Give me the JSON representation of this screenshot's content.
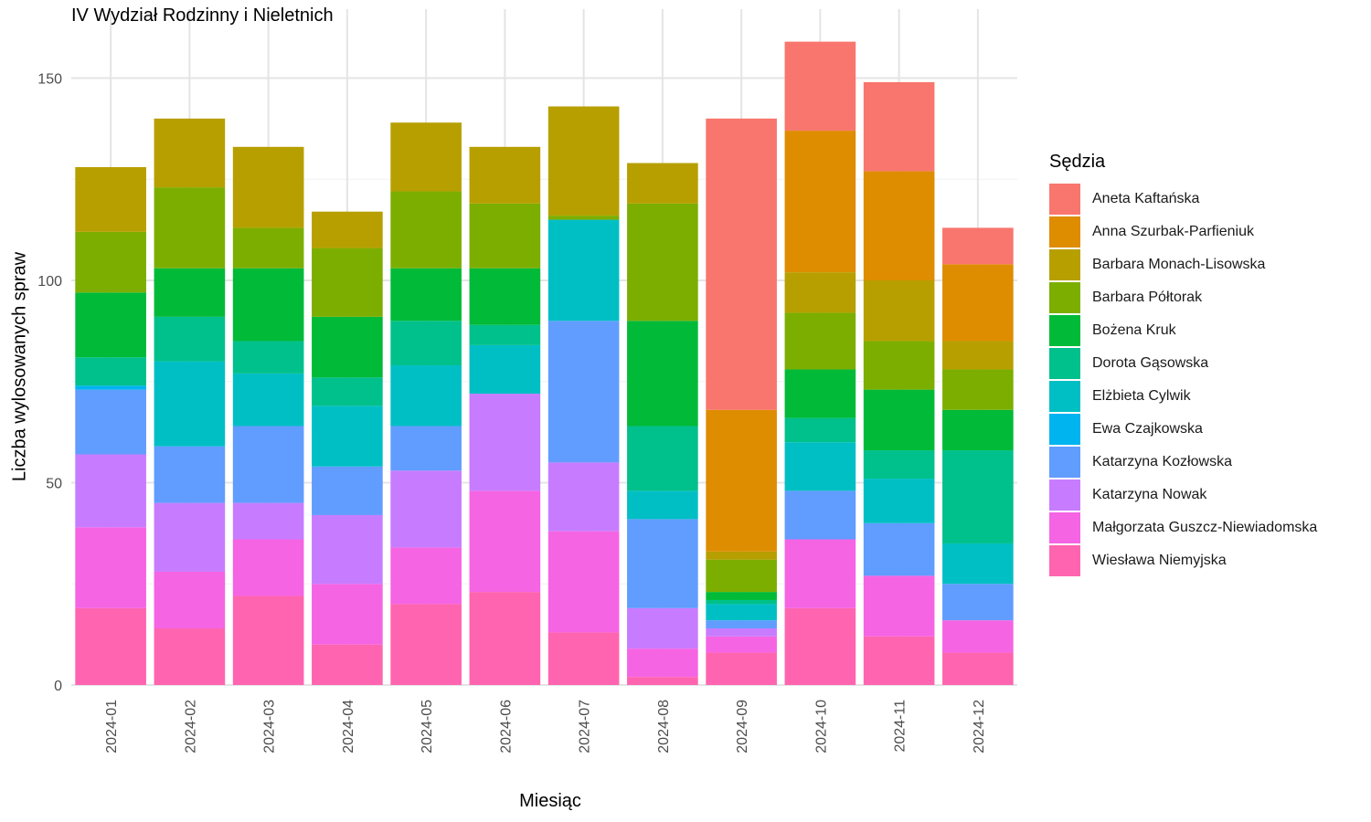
{
  "chart_data": {
    "type": "bar",
    "stacked": true,
    "title": "IV Wydział Rodzinny i Nieletnich",
    "xlabel": "Miesiąc",
    "ylabel": "Liczba wylosowanych spraw",
    "legend_title": "Sędzia",
    "legend_position": "right",
    "grid": true,
    "ylim": [
      0,
      165
    ],
    "yticks": [
      0,
      50,
      100,
      150
    ],
    "categories": [
      "2024-01",
      "2024-02",
      "2024-03",
      "2024-04",
      "2024-05",
      "2024-06",
      "2024-07",
      "2024-08",
      "2024-09",
      "2024-10",
      "2024-11",
      "2024-12"
    ],
    "series": [
      {
        "name": "Aneta Kaftańska",
        "color": "#F8766D",
        "values": [
          0,
          0,
          0,
          0,
          0,
          0,
          0,
          0,
          72,
          22,
          22,
          9
        ]
      },
      {
        "name": "Anna Szurbak-Parfieniuk",
        "color": "#DE8C00",
        "values": [
          0,
          0,
          0,
          0,
          0,
          0,
          0,
          0,
          35,
          35,
          27,
          19
        ]
      },
      {
        "name": "Barbara Monach-Lisowska",
        "color": "#B79F00",
        "values": [
          16,
          17,
          20,
          9,
          17,
          14,
          27,
          10,
          2,
          10,
          15,
          7
        ]
      },
      {
        "name": "Barbara Półtorak",
        "color": "#7CAE00",
        "values": [
          15,
          20,
          10,
          17,
          19,
          16,
          1,
          29,
          8,
          14,
          12,
          10
        ]
      },
      {
        "name": "Bożena Kruk",
        "color": "#00BA38",
        "values": [
          16,
          12,
          18,
          15,
          13,
          14,
          0,
          26,
          2,
          12,
          15,
          10
        ]
      },
      {
        "name": "Dorota Gąsowska",
        "color": "#00C08B",
        "values": [
          7,
          11,
          8,
          7,
          11,
          5,
          0,
          16,
          1,
          6,
          7,
          23
        ]
      },
      {
        "name": "Elżbieta Cylwik",
        "color": "#00BFC4",
        "values": [
          0,
          21,
          13,
          15,
          15,
          12,
          25,
          7,
          4,
          12,
          11,
          10
        ]
      },
      {
        "name": "Ewa Czajkowska",
        "color": "#00B4F0",
        "values": [
          1,
          0,
          0,
          0,
          0,
          0,
          0,
          0,
          0,
          0,
          0,
          0
        ]
      },
      {
        "name": "Katarzyna Kozłowska",
        "color": "#619CFF",
        "values": [
          16,
          14,
          19,
          12,
          11,
          0,
          35,
          22,
          2,
          12,
          13,
          9
        ]
      },
      {
        "name": "Katarzyna Nowak",
        "color": "#C77CFF",
        "values": [
          18,
          17,
          9,
          17,
          19,
          24,
          17,
          10,
          2,
          0,
          0,
          0
        ]
      },
      {
        "name": "Małgorzata Guszcz-Niewiadomska",
        "color": "#F564E3",
        "values": [
          20,
          14,
          14,
          15,
          14,
          25,
          25,
          7,
          4,
          17,
          15,
          8
        ]
      },
      {
        "name": "Wiesława Niemyjska",
        "color": "#FF64B0",
        "values": [
          19,
          14,
          22,
          10,
          20,
          23,
          13,
          2,
          8,
          19,
          12,
          8
        ]
      }
    ]
  }
}
